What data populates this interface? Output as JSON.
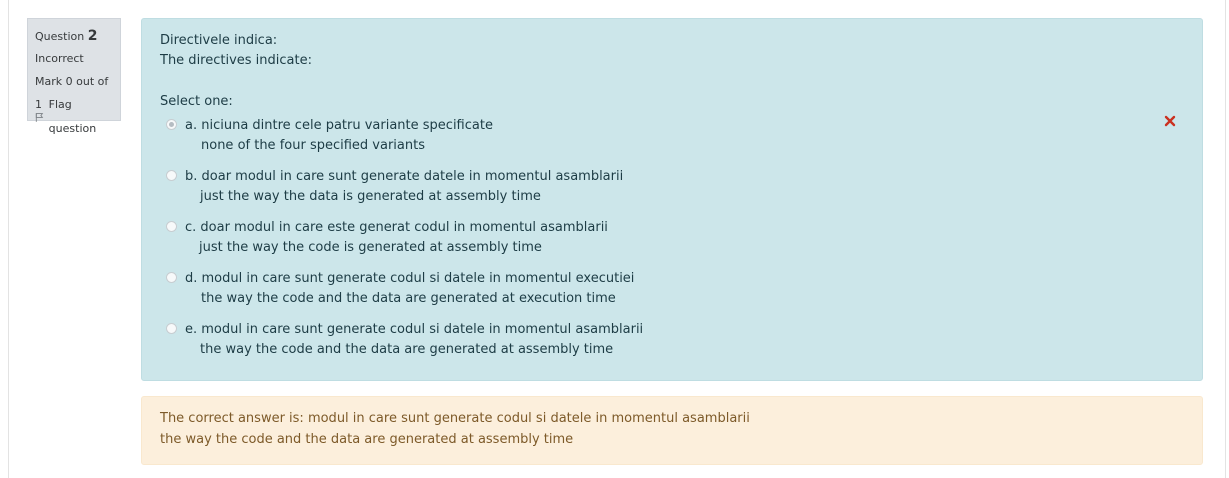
{
  "info": {
    "question_label": "Question",
    "question_number": "2",
    "state": "Incorrect",
    "grade": "Mark 0 out of 1",
    "flag_label": "Flag question"
  },
  "question": {
    "text_ro": "Directivele indica:",
    "text_en": "The directives indicate:",
    "prompt": "Select one:",
    "answers": [
      {
        "label": "a. niciuna dintre cele patru variante specificate",
        "sub": "none of the four specified variants",
        "selected": true
      },
      {
        "label": "b. doar modul in care sunt generate datele in momentul asamblarii",
        "sub": "just the way the data is generated at assembly time",
        "selected": false
      },
      {
        "label": "c. doar modul in care este generat codul in momentul asamblarii",
        "sub": "just the way the code is generated at assembly time",
        "selected": false
      },
      {
        "label": "d. modul in care sunt generate codul si datele in momentul executiei",
        "sub": "the way the code and the data are generated at execution time",
        "selected": false
      },
      {
        "label": "e. modul in care sunt generate codul si datele in momentul asamblarii",
        "sub": "the way the code and the data are generated at assembly time",
        "selected": false
      }
    ],
    "incorrect_icon": "cross-icon",
    "incorrect_color": "#ca3120"
  },
  "feedback": {
    "right_answer_ro": "The correct answer is: modul in care sunt generate codul si datele in momentul asamblarii",
    "right_answer_en": "the way the code and the data are generated at assembly time"
  },
  "colors": {
    "formulation_bg": "#cce6ea",
    "outcome_bg": "#fcefdc",
    "info_bg": "#dee2e6"
  }
}
